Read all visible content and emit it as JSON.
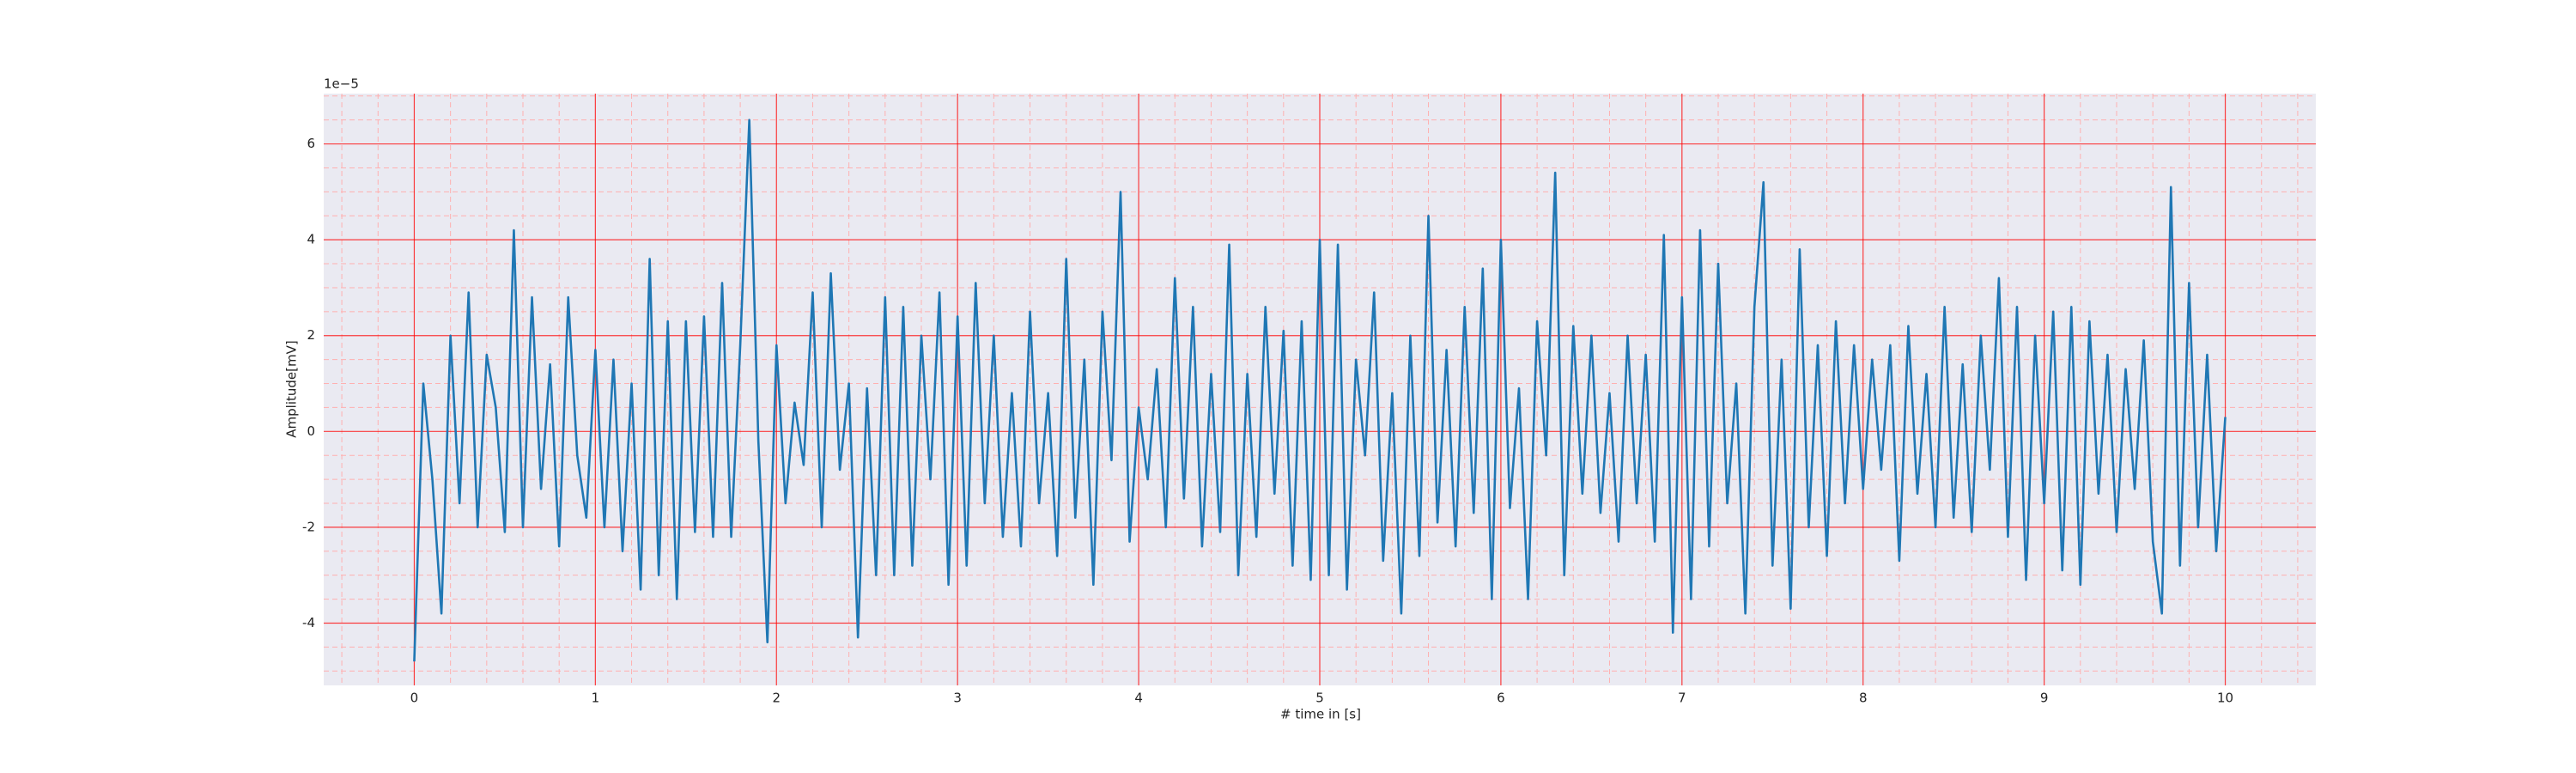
{
  "chart_data": {
    "type": "line",
    "xlabel": "# time in [s]",
    "ylabel": "Amplitude[mV]",
    "y_offset_label": "1e−5",
    "xlim": [
      -0.5,
      10.5
    ],
    "ylim": [
      -5.3,
      7.05
    ],
    "xticks": [
      0,
      1,
      2,
      3,
      4,
      5,
      6,
      7,
      8,
      9,
      10
    ],
    "yticks": [
      -4,
      -2,
      0,
      2,
      4,
      6
    ],
    "xminorticks": [
      -0.4,
      -0.2,
      0.2,
      0.4,
      0.6,
      0.8,
      1.2,
      1.4,
      1.6,
      1.8,
      2.2,
      2.4,
      2.6,
      2.8,
      3.2,
      3.4,
      3.6,
      3.8,
      4.2,
      4.4,
      4.6,
      4.8,
      5.2,
      5.4,
      5.6,
      5.8,
      6.2,
      6.4,
      6.6,
      6.8,
      7.2,
      7.4,
      7.6,
      7.8,
      8.2,
      8.4,
      8.6,
      8.8,
      9.2,
      9.4,
      9.6,
      9.8,
      10.2,
      10.4
    ],
    "yminorticks": [
      -5,
      -4.5,
      -3.5,
      -3,
      -2.5,
      -1.5,
      -1,
      -0.5,
      0.5,
      1,
      1.5,
      2.5,
      3,
      3.5,
      4.5,
      5,
      5.5,
      6.5,
      7
    ],
    "grid": true,
    "grid_color": "#ff0000",
    "minor_grid_color": "#ffb0b0",
    "background": "#eaeaf2",
    "x": [
      0,
      0.05,
      0.1,
      0.15,
      0.2,
      0.25,
      0.3,
      0.35,
      0.4,
      0.45,
      0.5,
      0.55,
      0.6,
      0.65,
      0.7,
      0.75,
      0.8,
      0.85,
      0.9,
      0.95,
      1,
      1.05,
      1.1,
      1.15,
      1.2,
      1.25,
      1.3,
      1.35,
      1.4,
      1.45,
      1.5,
      1.55,
      1.6,
      1.65,
      1.7,
      1.75,
      1.8,
      1.85,
      1.9,
      1.95,
      2,
      2.05,
      2.1,
      2.15,
      2.2,
      2.25,
      2.3,
      2.35,
      2.4,
      2.45,
      2.5,
      2.55,
      2.6,
      2.65,
      2.7,
      2.75,
      2.8,
      2.85,
      2.9,
      2.95,
      3,
      3.05,
      3.1,
      3.15,
      3.2,
      3.25,
      3.3,
      3.35,
      3.4,
      3.45,
      3.5,
      3.55,
      3.6,
      3.65,
      3.7,
      3.75,
      3.8,
      3.85,
      3.9,
      3.95,
      4,
      4.05,
      4.1,
      4.15,
      4.2,
      4.25,
      4.3,
      4.35,
      4.4,
      4.45,
      4.5,
      4.55,
      4.6,
      4.65,
      4.7,
      4.75,
      4.8,
      4.85,
      4.9,
      4.95,
      5,
      5.05,
      5.1,
      5.15,
      5.2,
      5.25,
      5.3,
      5.35,
      5.4,
      5.45,
      5.5,
      5.55,
      5.6,
      5.65,
      5.7,
      5.75,
      5.8,
      5.85,
      5.9,
      5.95,
      6,
      6.05,
      6.1,
      6.15,
      6.2,
      6.25,
      6.3,
      6.35,
      6.4,
      6.45,
      6.5,
      6.55,
      6.6,
      6.65,
      6.7,
      6.75,
      6.8,
      6.85,
      6.9,
      6.95,
      7,
      7.05,
      7.1,
      7.15,
      7.2,
      7.25,
      7.3,
      7.35,
      7.4,
      7.45,
      7.5,
      7.55,
      7.6,
      7.65,
      7.7,
      7.75,
      7.8,
      7.85,
      7.9,
      7.95,
      8,
      8.05,
      8.1,
      8.15,
      8.2,
      8.25,
      8.3,
      8.35,
      8.4,
      8.45,
      8.5,
      8.55,
      8.6,
      8.65,
      8.7,
      8.75,
      8.8,
      8.85,
      8.9,
      8.95,
      9,
      9.05,
      9.1,
      9.15,
      9.2,
      9.25,
      9.3,
      9.35,
      9.4,
      9.45,
      9.5,
      9.55,
      9.6,
      9.65,
      9.7,
      9.75,
      9.8,
      9.85,
      9.9,
      9.95,
      10
    ],
    "series": [
      {
        "color": "#1f77b4",
        "values": [
          -4.8,
          1.0,
          -1.0,
          -3.8,
          2.0,
          -1.5,
          2.9,
          -2.0,
          1.6,
          0.5,
          -2.1,
          4.2,
          -2.0,
          2.8,
          -1.2,
          1.4,
          -2.4,
          2.8,
          -0.5,
          -1.8,
          1.7,
          -2.0,
          1.5,
          -2.5,
          1.0,
          -3.3,
          3.6,
          -3.0,
          2.3,
          -3.5,
          2.3,
          -2.1,
          2.4,
          -2.2,
          3.1,
          -2.2,
          1.8,
          6.5,
          -0.2,
          -4.4,
          1.8,
          -1.5,
          0.6,
          -0.7,
          2.9,
          -2.0,
          3.3,
          -0.8,
          1.0,
          -4.3,
          0.9,
          -3.0,
          2.8,
          -3.0,
          2.6,
          -2.8,
          2.0,
          -1.0,
          2.9,
          -3.2,
          2.4,
          -2.8,
          3.1,
          -1.5,
          2.0,
          -2.2,
          0.8,
          -2.4,
          2.5,
          -1.5,
          0.8,
          -2.6,
          3.6,
          -1.8,
          1.5,
          -3.2,
          2.5,
          -0.6,
          5.0,
          -2.3,
          0.5,
          -1.0,
          1.3,
          -2.0,
          3.2,
          -1.4,
          2.6,
          -2.4,
          1.2,
          -2.1,
          3.9,
          -3.0,
          1.2,
          -2.2,
          2.6,
          -1.3,
          2.1,
          -2.8,
          2.3,
          -3.1,
          4.0,
          -3.0,
          3.9,
          -3.3,
          1.5,
          -0.5,
          2.9,
          -2.7,
          0.8,
          -3.8,
          2.0,
          -2.6,
          4.5,
          -1.9,
          1.7,
          -2.4,
          2.6,
          -1.7,
          3.4,
          -3.5,
          4.0,
          -1.6,
          0.9,
          -3.5,
          2.3,
          -0.5,
          5.4,
          -3.0,
          2.2,
          -1.3,
          2.0,
          -1.7,
          0.8,
          -2.3,
          2.0,
          -1.5,
          1.6,
          -2.3,
          4.1,
          -4.2,
          2.8,
          -3.5,
          4.2,
          -2.4,
          3.5,
          -1.5,
          1.0,
          -3.8,
          2.6,
          5.2,
          -2.8,
          1.5,
          -3.7,
          3.8,
          -2.0,
          1.8,
          -2.6,
          2.3,
          -1.5,
          1.8,
          -1.2,
          1.5,
          -0.8,
          1.8,
          -2.7,
          2.2,
          -1.3,
          1.2,
          -2.0,
          2.6,
          -1.8,
          1.4,
          -2.1,
          2.0,
          -0.8,
          3.2,
          -2.2,
          2.6,
          -3.1,
          2.0,
          -1.5,
          2.5,
          -2.9,
          2.6,
          -3.2,
          2.3,
          -1.3,
          1.6,
          -2.1,
          1.3,
          -1.2,
          1.9,
          -2.3,
          -3.8,
          5.1,
          -2.8,
          3.1,
          -2.0,
          1.6,
          -2.5,
          0.3
        ]
      }
    ]
  }
}
